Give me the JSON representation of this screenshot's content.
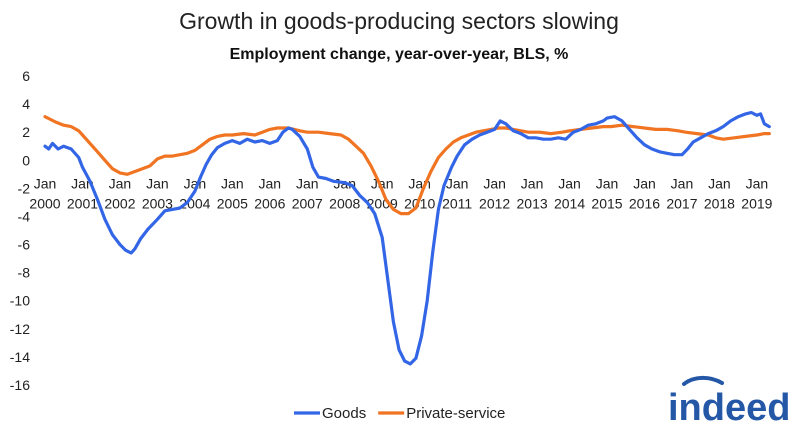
{
  "logo": {
    "text": "indeed",
    "color": "#2557a7"
  },
  "chart_data": {
    "type": "line",
    "title": "Growth in goods-producing sectors slowing",
    "subtitle": "Employment change, year-over-year, BLS, %",
    "xlabel": "",
    "ylabel": "",
    "ylim": [
      -16,
      6
    ],
    "yticks": [
      6,
      4,
      2,
      0,
      -2,
      -4,
      -6,
      -8,
      -10,
      -12,
      -14,
      -16
    ],
    "xlim": [
      2000,
      2019.35
    ],
    "xticks": [
      {
        "x": 2000,
        "line1": "Jan",
        "line2": "2000"
      },
      {
        "x": 2001,
        "line1": "Jan",
        "line2": "2001"
      },
      {
        "x": 2002,
        "line1": "Jan",
        "line2": "2002"
      },
      {
        "x": 2003,
        "line1": "Jan",
        "line2": "2003"
      },
      {
        "x": 2004,
        "line1": "Jan",
        "line2": "2004"
      },
      {
        "x": 2005,
        "line1": "Jan",
        "line2": "2005"
      },
      {
        "x": 2006,
        "line1": "Jan",
        "line2": "2006"
      },
      {
        "x": 2007,
        "line1": "Jan",
        "line2": "2007"
      },
      {
        "x": 2008,
        "line1": "Jan",
        "line2": "2008"
      },
      {
        "x": 2009,
        "line1": "Jan",
        "line2": "2009"
      },
      {
        "x": 2010,
        "line1": "Jan",
        "line2": "2010"
      },
      {
        "x": 2011,
        "line1": "Jan",
        "line2": "2011"
      },
      {
        "x": 2012,
        "line1": "Jan",
        "line2": "2012"
      },
      {
        "x": 2013,
        "line1": "Jan",
        "line2": "2013"
      },
      {
        "x": 2014,
        "line1": "Jan",
        "line2": "2014"
      },
      {
        "x": 2015,
        "line1": "Jan",
        "line2": "2015"
      },
      {
        "x": 2016,
        "line1": "Jan",
        "line2": "2016"
      },
      {
        "x": 2017,
        "line1": "Jan",
        "line2": "2017"
      },
      {
        "x": 2018,
        "line1": "Jan",
        "line2": "2018"
      },
      {
        "x": 2019,
        "line1": "Jan",
        "line2": "2019"
      }
    ],
    "grid": false,
    "legend_position": "bottom",
    "series": [
      {
        "name": "Goods",
        "color": "#3366e6",
        "points": [
          [
            2000.0,
            1.0
          ],
          [
            2000.1,
            0.8
          ],
          [
            2000.2,
            1.2
          ],
          [
            2000.35,
            0.8
          ],
          [
            2000.5,
            1.0
          ],
          [
            2000.7,
            0.8
          ],
          [
            2000.9,
            0.2
          ],
          [
            2001.0,
            -0.5
          ],
          [
            2001.2,
            -1.5
          ],
          [
            2001.4,
            -2.8
          ],
          [
            2001.6,
            -4.2
          ],
          [
            2001.8,
            -5.3
          ],
          [
            2002.0,
            -6.0
          ],
          [
            2002.15,
            -6.4
          ],
          [
            2002.3,
            -6.6
          ],
          [
            2002.4,
            -6.3
          ],
          [
            2002.55,
            -5.6
          ],
          [
            2002.75,
            -4.9
          ],
          [
            2003.0,
            -4.2
          ],
          [
            2003.2,
            -3.6
          ],
          [
            2003.4,
            -3.5
          ],
          [
            2003.6,
            -3.4
          ],
          [
            2003.8,
            -3.0
          ],
          [
            2004.0,
            -2.2
          ],
          [
            2004.15,
            -1.2
          ],
          [
            2004.3,
            -0.3
          ],
          [
            2004.45,
            0.4
          ],
          [
            2004.6,
            0.9
          ],
          [
            2004.8,
            1.2
          ],
          [
            2005.0,
            1.4
          ],
          [
            2005.2,
            1.2
          ],
          [
            2005.4,
            1.5
          ],
          [
            2005.6,
            1.3
          ],
          [
            2005.8,
            1.4
          ],
          [
            2006.0,
            1.2
          ],
          [
            2006.2,
            1.4
          ],
          [
            2006.35,
            2.0
          ],
          [
            2006.5,
            2.3
          ],
          [
            2006.6,
            2.2
          ],
          [
            2006.8,
            1.7
          ],
          [
            2007.0,
            0.8
          ],
          [
            2007.15,
            -0.5
          ],
          [
            2007.3,
            -1.2
          ],
          [
            2007.5,
            -1.3
          ],
          [
            2007.7,
            -1.5
          ],
          [
            2008.0,
            -1.6
          ],
          [
            2008.2,
            -1.8
          ],
          [
            2008.4,
            -2.5
          ],
          [
            2008.6,
            -3.0
          ],
          [
            2008.8,
            -3.8
          ],
          [
            2009.0,
            -5.5
          ],
          [
            2009.15,
            -8.5
          ],
          [
            2009.3,
            -11.5
          ],
          [
            2009.45,
            -13.5
          ],
          [
            2009.6,
            -14.3
          ],
          [
            2009.75,
            -14.5
          ],
          [
            2009.9,
            -14.1
          ],
          [
            2010.05,
            -12.5
          ],
          [
            2010.2,
            -10.0
          ],
          [
            2010.35,
            -6.5
          ],
          [
            2010.5,
            -3.5
          ],
          [
            2010.65,
            -1.8
          ],
          [
            2010.85,
            -0.5
          ],
          [
            2011.0,
            0.3
          ],
          [
            2011.2,
            1.1
          ],
          [
            2011.4,
            1.5
          ],
          [
            2011.6,
            1.8
          ],
          [
            2011.8,
            2.0
          ],
          [
            2012.0,
            2.2
          ],
          [
            2012.15,
            2.8
          ],
          [
            2012.3,
            2.6
          ],
          [
            2012.5,
            2.1
          ],
          [
            2012.7,
            1.9
          ],
          [
            2012.9,
            1.6
          ],
          [
            2013.1,
            1.6
          ],
          [
            2013.3,
            1.5
          ],
          [
            2013.5,
            1.5
          ],
          [
            2013.7,
            1.6
          ],
          [
            2013.9,
            1.5
          ],
          [
            2014.1,
            2.0
          ],
          [
            2014.3,
            2.2
          ],
          [
            2014.5,
            2.5
          ],
          [
            2014.7,
            2.6
          ],
          [
            2014.9,
            2.8
          ],
          [
            2015.0,
            3.0
          ],
          [
            2015.2,
            3.1
          ],
          [
            2015.4,
            2.8
          ],
          [
            2015.6,
            2.2
          ],
          [
            2015.8,
            1.6
          ],
          [
            2016.0,
            1.1
          ],
          [
            2016.2,
            0.8
          ],
          [
            2016.4,
            0.6
          ],
          [
            2016.6,
            0.5
          ],
          [
            2016.8,
            0.4
          ],
          [
            2017.0,
            0.4
          ],
          [
            2017.15,
            0.8
          ],
          [
            2017.3,
            1.3
          ],
          [
            2017.5,
            1.6
          ],
          [
            2017.7,
            1.9
          ],
          [
            2017.9,
            2.1
          ],
          [
            2018.1,
            2.4
          ],
          [
            2018.3,
            2.8
          ],
          [
            2018.5,
            3.1
          ],
          [
            2018.7,
            3.3
          ],
          [
            2018.85,
            3.4
          ],
          [
            2019.0,
            3.2
          ],
          [
            2019.1,
            3.3
          ],
          [
            2019.2,
            2.6
          ],
          [
            2019.33,
            2.4
          ]
        ]
      },
      {
        "name": "Private-service",
        "color": "#f07422",
        "points": [
          [
            2000.0,
            3.1
          ],
          [
            2000.15,
            2.9
          ],
          [
            2000.3,
            2.7
          ],
          [
            2000.5,
            2.5
          ],
          [
            2000.7,
            2.4
          ],
          [
            2000.9,
            2.1
          ],
          [
            2001.0,
            1.8
          ],
          [
            2001.2,
            1.2
          ],
          [
            2001.4,
            0.6
          ],
          [
            2001.6,
            0.0
          ],
          [
            2001.8,
            -0.6
          ],
          [
            2002.0,
            -0.9
          ],
          [
            2002.2,
            -1.0
          ],
          [
            2002.4,
            -0.8
          ],
          [
            2002.6,
            -0.6
          ],
          [
            2002.8,
            -0.4
          ],
          [
            2003.0,
            0.1
          ],
          [
            2003.2,
            0.3
          ],
          [
            2003.4,
            0.3
          ],
          [
            2003.6,
            0.4
          ],
          [
            2003.8,
            0.5
          ],
          [
            2004.0,
            0.7
          ],
          [
            2004.2,
            1.1
          ],
          [
            2004.4,
            1.5
          ],
          [
            2004.6,
            1.7
          ],
          [
            2004.8,
            1.8
          ],
          [
            2005.0,
            1.8
          ],
          [
            2005.3,
            1.9
          ],
          [
            2005.6,
            1.8
          ],
          [
            2005.8,
            2.0
          ],
          [
            2006.0,
            2.2
          ],
          [
            2006.2,
            2.3
          ],
          [
            2006.5,
            2.3
          ],
          [
            2006.8,
            2.1
          ],
          [
            2007.0,
            2.0
          ],
          [
            2007.3,
            2.0
          ],
          [
            2007.6,
            1.9
          ],
          [
            2007.9,
            1.8
          ],
          [
            2008.1,
            1.5
          ],
          [
            2008.3,
            1.0
          ],
          [
            2008.5,
            0.5
          ],
          [
            2008.7,
            -0.4
          ],
          [
            2008.9,
            -1.5
          ],
          [
            2009.1,
            -2.8
          ],
          [
            2009.3,
            -3.5
          ],
          [
            2009.5,
            -3.8
          ],
          [
            2009.7,
            -3.8
          ],
          [
            2009.9,
            -3.4
          ],
          [
            2010.1,
            -2.0
          ],
          [
            2010.3,
            -0.8
          ],
          [
            2010.5,
            0.2
          ],
          [
            2010.7,
            0.8
          ],
          [
            2010.9,
            1.3
          ],
          [
            2011.1,
            1.6
          ],
          [
            2011.3,
            1.8
          ],
          [
            2011.5,
            2.0
          ],
          [
            2011.7,
            2.1
          ],
          [
            2011.9,
            2.2
          ],
          [
            2012.1,
            2.3
          ],
          [
            2012.3,
            2.3
          ],
          [
            2012.5,
            2.2
          ],
          [
            2012.7,
            2.1
          ],
          [
            2012.9,
            2.0
          ],
          [
            2013.2,
            2.0
          ],
          [
            2013.5,
            1.9
          ],
          [
            2013.8,
            2.0
          ],
          [
            2014.0,
            2.1
          ],
          [
            2014.3,
            2.2
          ],
          [
            2014.6,
            2.3
          ],
          [
            2014.9,
            2.4
          ],
          [
            2015.1,
            2.4
          ],
          [
            2015.4,
            2.5
          ],
          [
            2015.7,
            2.4
          ],
          [
            2016.0,
            2.3
          ],
          [
            2016.3,
            2.2
          ],
          [
            2016.6,
            2.2
          ],
          [
            2016.9,
            2.1
          ],
          [
            2017.1,
            2.0
          ],
          [
            2017.4,
            1.9
          ],
          [
            2017.7,
            1.8
          ],
          [
            2017.9,
            1.6
          ],
          [
            2018.1,
            1.5
          ],
          [
            2018.4,
            1.6
          ],
          [
            2018.7,
            1.7
          ],
          [
            2019.0,
            1.8
          ],
          [
            2019.2,
            1.9
          ],
          [
            2019.33,
            1.9
          ]
        ]
      }
    ]
  }
}
